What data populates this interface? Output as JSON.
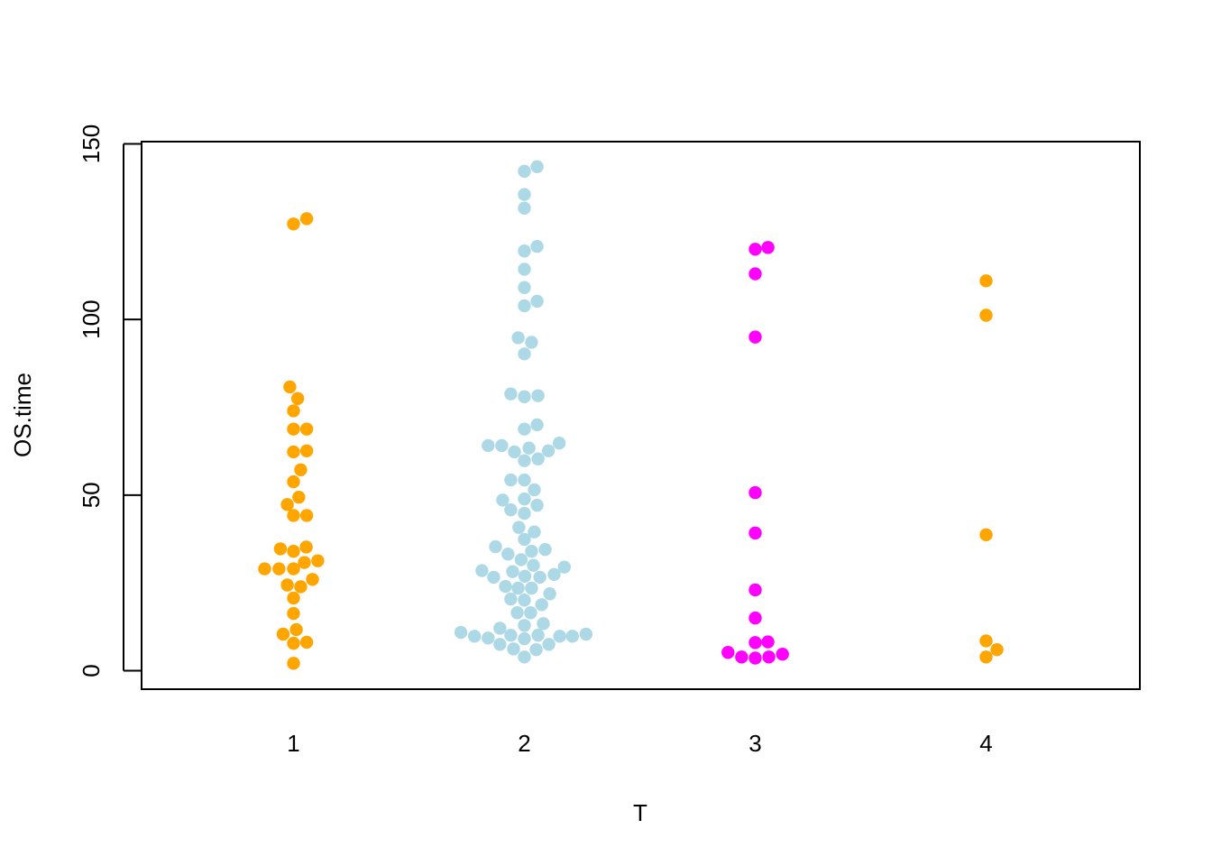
{
  "chart_data": {
    "type": "scatter",
    "subtype": "beeswarm",
    "title": "",
    "xlabel": "T",
    "ylabel": "OS.time",
    "categories": [
      "1",
      "2",
      "3",
      "4"
    ],
    "ylim": [
      -5,
      150
    ],
    "y_ticks": [
      0,
      50,
      100,
      150
    ],
    "y_tick_labels": [
      "0",
      "50",
      "100",
      "150"
    ],
    "grid": false,
    "legend": "none",
    "series": [
      {
        "category": "1",
        "color": "#FFA500",
        "points": [
          {
            "x": 0,
            "y": 127.2
          },
          {
            "x": 0.057,
            "y": 128.7
          },
          {
            "x": -0.016,
            "y": 80.8
          },
          {
            "x": 0.018,
            "y": 77.5
          },
          {
            "x": 0,
            "y": 74.0
          },
          {
            "x": 0,
            "y": 68.8
          },
          {
            "x": 0.057,
            "y": 68.8
          },
          {
            "x": 0,
            "y": 62.3
          },
          {
            "x": 0.057,
            "y": 62.6
          },
          {
            "x": 0.031,
            "y": 57.2
          },
          {
            "x": 0,
            "y": 53.8
          },
          {
            "x": 0.023,
            "y": 49.4
          },
          {
            "x": -0.027,
            "y": 47.3
          },
          {
            "x": 0,
            "y": 44.2
          },
          {
            "x": 0.057,
            "y": 44.2
          },
          {
            "x": -0.057,
            "y": 34.7
          },
          {
            "x": 0,
            "y": 34.0
          },
          {
            "x": 0.055,
            "y": 35.2
          },
          {
            "x": 0.105,
            "y": 31.3
          },
          {
            "x": 0.047,
            "y": 30.8
          },
          {
            "x": -0.125,
            "y": 29.0
          },
          {
            "x": -0.063,
            "y": 29.0
          },
          {
            "x": 0,
            "y": 29.0
          },
          {
            "x": 0.082,
            "y": 26.0
          },
          {
            "x": -0.027,
            "y": 24.4
          },
          {
            "x": 0.031,
            "y": 23.9
          },
          {
            "x": 0,
            "y": 20.7
          },
          {
            "x": 0,
            "y": 16.3
          },
          {
            "x": 0.012,
            "y": 11.7
          },
          {
            "x": -0.045,
            "y": 10.4
          },
          {
            "x": 0,
            "y": 7.8
          },
          {
            "x": 0.057,
            "y": 8.1
          },
          {
            "x": 0,
            "y": 2.1
          }
        ]
      },
      {
        "category": "2",
        "color": "#ADD8E6",
        "points": [
          {
            "x": 0.055,
            "y": 143.5
          },
          {
            "x": 0,
            "y": 142.2
          },
          {
            "x": 0,
            "y": 135.6
          },
          {
            "x": 0,
            "y": 131.7
          },
          {
            "x": 0.055,
            "y": 120.8
          },
          {
            "x": 0,
            "y": 119.5
          },
          {
            "x": 0,
            "y": 114.3
          },
          {
            "x": 0,
            "y": 109.1
          },
          {
            "x": 0.055,
            "y": 105.2
          },
          {
            "x": 0,
            "y": 103.9
          },
          {
            "x": -0.027,
            "y": 94.8
          },
          {
            "x": 0.031,
            "y": 93.5
          },
          {
            "x": 0,
            "y": 90.2
          },
          {
            "x": -0.059,
            "y": 78.8
          },
          {
            "x": 0,
            "y": 78.0
          },
          {
            "x": 0.059,
            "y": 78.3
          },
          {
            "x": 0.055,
            "y": 70.0
          },
          {
            "x": 0,
            "y": 68.8
          },
          {
            "x": -0.157,
            "y": 64.1
          },
          {
            "x": -0.098,
            "y": 64.1
          },
          {
            "x": -0.043,
            "y": 62.3
          },
          {
            "x": 0.02,
            "y": 63.4
          },
          {
            "x": 0.104,
            "y": 62.6
          },
          {
            "x": 0.151,
            "y": 64.8
          },
          {
            "x": 0,
            "y": 59.8
          },
          {
            "x": 0.059,
            "y": 60.3
          },
          {
            "x": -0.059,
            "y": 54.3
          },
          {
            "x": 0,
            "y": 54.3
          },
          {
            "x": 0.043,
            "y": 51.5
          },
          {
            "x": -0.094,
            "y": 48.6
          },
          {
            "x": 0,
            "y": 48.9
          },
          {
            "x": 0.055,
            "y": 47.1
          },
          {
            "x": -0.059,
            "y": 45.8
          },
          {
            "x": 0,
            "y": 44.8
          },
          {
            "x": -0.024,
            "y": 40.8
          },
          {
            "x": 0.043,
            "y": 39.5
          },
          {
            "x": 0,
            "y": 37.4
          },
          {
            "x": -0.125,
            "y": 35.3
          },
          {
            "x": 0.031,
            "y": 34.0
          },
          {
            "x": 0.09,
            "y": 34.5
          },
          {
            "x": -0.071,
            "y": 33.2
          },
          {
            "x": -0.014,
            "y": 31.6
          },
          {
            "x": 0.039,
            "y": 30.0
          },
          {
            "x": 0.173,
            "y": 29.5
          },
          {
            "x": -0.184,
            "y": 28.5
          },
          {
            "x": -0.051,
            "y": 28.2
          },
          {
            "x": 0.129,
            "y": 27.4
          },
          {
            "x": -0.133,
            "y": 26.6
          },
          {
            "x": 0.002,
            "y": 26.9
          },
          {
            "x": 0.067,
            "y": 26.6
          },
          {
            "x": -0.082,
            "y": 24.0
          },
          {
            "x": -0.027,
            "y": 23.5
          },
          {
            "x": 0.031,
            "y": 23.5
          },
          {
            "x": 0.11,
            "y": 21.9
          },
          {
            "x": -0.059,
            "y": 20.4
          },
          {
            "x": 0,
            "y": 20.1
          },
          {
            "x": 0.075,
            "y": 18.8
          },
          {
            "x": -0.031,
            "y": 16.5
          },
          {
            "x": 0.027,
            "y": 16.5
          },
          {
            "x": 0.082,
            "y": 13.4
          },
          {
            "x": 0,
            "y": 12.9
          },
          {
            "x": -0.106,
            "y": 12.1
          },
          {
            "x": -0.275,
            "y": 10.9
          },
          {
            "x": -0.216,
            "y": 9.8
          },
          {
            "x": -0.157,
            "y": 9.3
          },
          {
            "x": -0.059,
            "y": 10.1
          },
          {
            "x": 0,
            "y": 9.1
          },
          {
            "x": 0.059,
            "y": 10.1
          },
          {
            "x": 0.153,
            "y": 9.8
          },
          {
            "x": 0.208,
            "y": 9.8
          },
          {
            "x": 0.267,
            "y": 10.4
          },
          {
            "x": -0.106,
            "y": 7.5
          },
          {
            "x": -0.047,
            "y": 6.2
          },
          {
            "x": 0.051,
            "y": 6.0
          },
          {
            "x": 0.106,
            "y": 7.5
          },
          {
            "x": 0,
            "y": 3.9
          }
        ]
      },
      {
        "category": "3",
        "color": "#FF00FF",
        "points": [
          {
            "x": 0,
            "y": 120.0
          },
          {
            "x": 0.055,
            "y": 120.5
          },
          {
            "x": 0,
            "y": 113.0
          },
          {
            "x": 0,
            "y": 95.0
          },
          {
            "x": 0,
            "y": 50.7
          },
          {
            "x": 0,
            "y": 39.2
          },
          {
            "x": 0,
            "y": 23.0
          },
          {
            "x": 0,
            "y": 15.0
          },
          {
            "x": 0,
            "y": 8.0
          },
          {
            "x": 0.055,
            "y": 8.2
          },
          {
            "x": -0.118,
            "y": 5.2
          },
          {
            "x": -0.059,
            "y": 3.9
          },
          {
            "x": 0,
            "y": 3.6
          },
          {
            "x": 0.059,
            "y": 3.9
          },
          {
            "x": 0.118,
            "y": 4.7
          }
        ]
      },
      {
        "category": "4",
        "color": "#FFA500",
        "points": [
          {
            "x": 0,
            "y": 111.0
          },
          {
            "x": 0,
            "y": 101.2
          },
          {
            "x": 0,
            "y": 38.7
          },
          {
            "x": 0,
            "y": 8.5
          },
          {
            "x": 0.047,
            "y": 6.0
          },
          {
            "x": 0,
            "y": 3.9
          }
        ]
      }
    ]
  }
}
